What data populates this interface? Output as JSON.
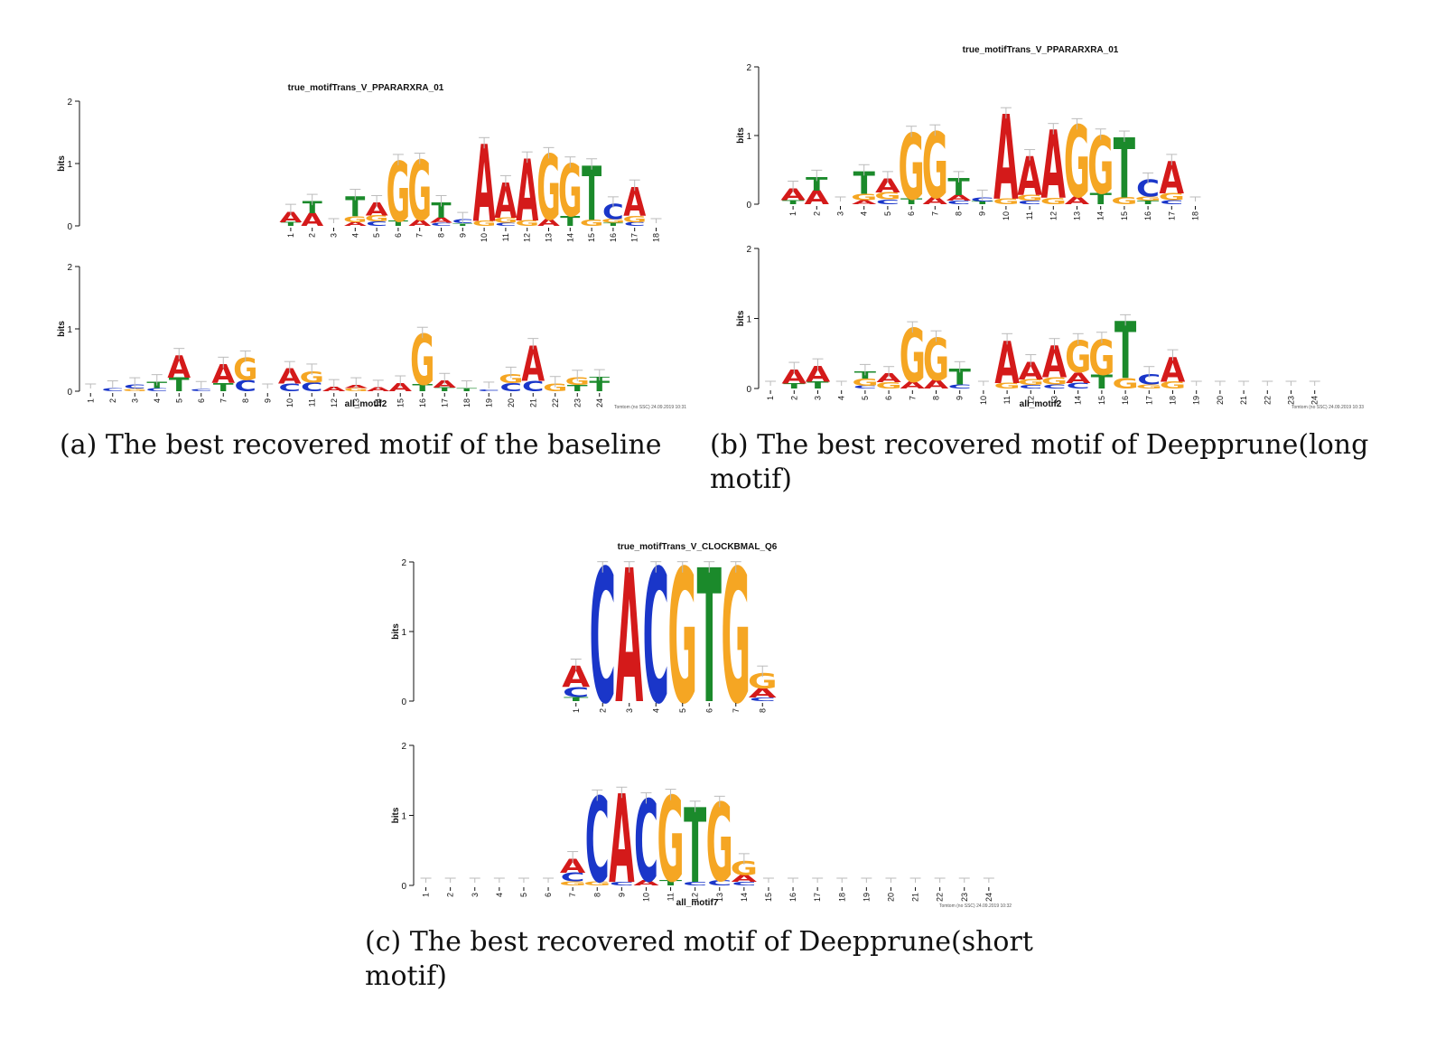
{
  "colors": {
    "A": "#d41a1a",
    "C": "#1a36c9",
    "G": "#f5a623",
    "T": "#1b8a2b",
    "axis": "#111111",
    "error": "#bbbbbb"
  },
  "figures": [
    {
      "id": "a",
      "caption": "(a) The best recovered motif of the baseline",
      "logos": [
        {
          "title": "true_motifTrans_V_PPARARXRA_01",
          "ylabel": "bits",
          "yticks": [
            "0",
            "1",
            "2"
          ],
          "xlabel": "",
          "footer": "",
          "positions": [
            [
              [
                "T",
                0.06
              ],
              [
                "A",
                0.17
              ]
            ],
            [
              [
                "A",
                0.2
              ],
              [
                "T",
                0.19
              ]
            ],
            [],
            [
              [
                "A",
                0.06
              ],
              [
                "G",
                0.09
              ],
              [
                "T",
                0.32
              ]
            ],
            [
              [
                "C",
                0.07
              ],
              [
                "G",
                0.1
              ],
              [
                "A",
                0.2
              ]
            ],
            [
              [
                "T",
                0.08
              ],
              [
                "G",
                0.95
              ]
            ],
            [
              [
                "A",
                0.1
              ],
              [
                "G",
                0.95
              ]
            ],
            [
              [
                "C",
                0.05
              ],
              [
                "A",
                0.08
              ],
              [
                "T",
                0.24
              ]
            ],
            [
              [
                "T",
                0.04
              ],
              [
                "C",
                0.06
              ]
            ],
            [
              [
                "G",
                0.08
              ],
              [
                "A",
                1.22
              ]
            ],
            [
              [
                "C",
                0.05
              ],
              [
                "G",
                0.08
              ],
              [
                "A",
                0.56
              ]
            ],
            [
              [
                "G",
                0.09
              ],
              [
                "A",
                0.98
              ]
            ],
            [
              [
                "A",
                0.11
              ],
              [
                "G",
                1.03
              ]
            ],
            [
              [
                "T",
                0.16
              ],
              [
                "G",
                0.83
              ]
            ],
            [
              [
                "G",
                0.1
              ],
              [
                "T",
                0.86
              ]
            ],
            [
              [
                "T",
                0.05
              ],
              [
                "G",
                0.06
              ],
              [
                "C",
                0.24
              ]
            ],
            [
              [
                "C",
                0.06
              ],
              [
                "G",
                0.1
              ],
              [
                "A",
                0.46
              ]
            ],
            []
          ]
        },
        {
          "title": "",
          "ylabel": "bits",
          "yticks": [
            "0",
            "1",
            "2"
          ],
          "xlabel": "all_motif2",
          "footer": "Tomtom (no SSC) 24.09.2019 10:31",
          "positions": [
            [],
            [
              [
                "C",
                0.05
              ]
            ],
            [
              [
                "G",
                0.04
              ],
              [
                "C",
                0.06
              ]
            ],
            [
              [
                "C",
                0.05
              ],
              [
                "T",
                0.1
              ]
            ],
            [
              [
                "T",
                0.22
              ],
              [
                "A",
                0.35
              ]
            ],
            [
              [
                "C",
                0.04
              ]
            ],
            [
              [
                "T",
                0.13
              ],
              [
                "A",
                0.3
              ]
            ],
            [
              [
                "C",
                0.18
              ],
              [
                "G",
                0.35
              ]
            ],
            [],
            [
              [
                "C",
                0.12
              ],
              [
                "A",
                0.24
              ]
            ],
            [
              [
                "C",
                0.14
              ],
              [
                "G",
                0.18
              ]
            ],
            [
              [
                "A",
                0.07
              ]
            ],
            [
              [
                "G",
                0.05
              ],
              [
                "A",
                0.05
              ]
            ],
            [
              [
                "A",
                0.06
              ]
            ],
            [
              [
                "A",
                0.13
              ]
            ],
            [
              [
                "T",
                0.11
              ],
              [
                "G",
                0.8
              ]
            ],
            [
              [
                "T",
                0.06
              ],
              [
                "A",
                0.11
              ]
            ],
            [
              [
                "T",
                0.05
              ]
            ],
            [
              [
                "C",
                0.03
              ]
            ],
            [
              [
                "C",
                0.13
              ],
              [
                "G",
                0.14
              ]
            ],
            [
              [
                "C",
                0.17
              ],
              [
                "A",
                0.56
              ]
            ],
            [
              [
                "G",
                0.12
              ]
            ],
            [
              [
                "T",
                0.1
              ],
              [
                "G",
                0.12
              ]
            ],
            [
              [
                "T",
                0.17
              ],
              [
                "T",
                0.06
              ]
            ]
          ]
        }
      ]
    },
    {
      "id": "b",
      "caption": "(b) The best recovered motif of Deepprune(long motif)",
      "caption_line1": "(b) The best recovered motif of Deepprune(long",
      "caption_line2": "motif)",
      "logos": [
        {
          "title": "true_motifTrans_V_PPARARXRA_01",
          "ylabel": "bits",
          "yticks": [
            "0",
            "1",
            "2"
          ],
          "xlabel": "",
          "footer": "",
          "positions": [
            [
              [
                "T",
                0.06
              ],
              [
                "A",
                0.17
              ]
            ],
            [
              [
                "A",
                0.2
              ],
              [
                "T",
                0.19
              ]
            ],
            [],
            [
              [
                "A",
                0.06
              ],
              [
                "G",
                0.09
              ],
              [
                "T",
                0.32
              ]
            ],
            [
              [
                "C",
                0.07
              ],
              [
                "G",
                0.1
              ],
              [
                "A",
                0.2
              ]
            ],
            [
              [
                "T",
                0.08
              ],
              [
                "G",
                0.95
              ]
            ],
            [
              [
                "A",
                0.1
              ],
              [
                "G",
                0.95
              ]
            ],
            [
              [
                "C",
                0.05
              ],
              [
                "A",
                0.08
              ],
              [
                "T",
                0.24
              ]
            ],
            [
              [
                "T",
                0.04
              ],
              [
                "C",
                0.06
              ]
            ],
            [
              [
                "G",
                0.08
              ],
              [
                "A",
                1.22
              ]
            ],
            [
              [
                "C",
                0.05
              ],
              [
                "G",
                0.08
              ],
              [
                "A",
                0.56
              ]
            ],
            [
              [
                "G",
                0.09
              ],
              [
                "A",
                0.98
              ]
            ],
            [
              [
                "A",
                0.11
              ],
              [
                "G",
                1.03
              ]
            ],
            [
              [
                "T",
                0.16
              ],
              [
                "G",
                0.83
              ]
            ],
            [
              [
                "G",
                0.1
              ],
              [
                "T",
                0.86
              ]
            ],
            [
              [
                "T",
                0.05
              ],
              [
                "G",
                0.06
              ],
              [
                "C",
                0.24
              ]
            ],
            [
              [
                "C",
                0.06
              ],
              [
                "G",
                0.1
              ],
              [
                "A",
                0.46
              ]
            ],
            []
          ]
        },
        {
          "title": "",
          "ylabel": "bits",
          "yticks": [
            "0",
            "1",
            "2"
          ],
          "xlabel": "all_motif2",
          "footer": "Tomtom (no SSC) 24.09.2019 10:33",
          "positions": [
            [],
            [
              [
                "T",
                0.07
              ],
              [
                "A",
                0.2
              ]
            ],
            [
              [
                "T",
                0.1
              ],
              [
                "A",
                0.22
              ]
            ],
            [],
            [
              [
                "C",
                0.04
              ],
              [
                "G",
                0.1
              ],
              [
                "T",
                0.1
              ]
            ],
            [
              [
                "G",
                0.09
              ],
              [
                "A",
                0.12
              ]
            ],
            [
              [
                "A",
                0.1
              ],
              [
                "G",
                0.75
              ]
            ],
            [
              [
                "A",
                0.12
              ],
              [
                "G",
                0.6
              ]
            ],
            [
              [
                "C",
                0.06
              ],
              [
                "T",
                0.22
              ]
            ],
            [],
            [
              [
                "G",
                0.08
              ],
              [
                "A",
                0.6
              ]
            ],
            [
              [
                "C",
                0.05
              ],
              [
                "G",
                0.08
              ],
              [
                "A",
                0.25
              ]
            ],
            [
              [
                "C",
                0.06
              ],
              [
                "G",
                0.1
              ],
              [
                "A",
                0.45
              ]
            ],
            [
              [
                "C",
                0.08
              ],
              [
                "A",
                0.15
              ],
              [
                "G",
                0.45
              ]
            ],
            [
              [
                "T",
                0.2
              ],
              [
                "G",
                0.5
              ]
            ],
            [
              [
                "G",
                0.15
              ],
              [
                "T",
                0.8
              ]
            ],
            [
              [
                "G",
                0.06
              ],
              [
                "C",
                0.15
              ]
            ],
            [
              [
                "G",
                0.1
              ],
              [
                "A",
                0.35
              ]
            ],
            [],
            [],
            [],
            [],
            [],
            []
          ]
        }
      ]
    },
    {
      "id": "c",
      "caption_line1": "(c) The best recovered motif of Deepprune(short",
      "caption_line2": "motif)",
      "logos": [
        {
          "title": "true_motifTrans_V_CLOCKBMAL_Q6",
          "ylabel": "bits",
          "yticks": [
            "0",
            "1",
            "2"
          ],
          "xlabel": "",
          "footer": "",
          "positions": [
            [
              [
                "T",
                0.06
              ],
              [
                "C",
                0.14
              ],
              [
                "A",
                0.3
              ]
            ],
            [
              [
                "C",
                1.9
              ]
            ],
            [
              [
                "A",
                1.9
              ]
            ],
            [
              [
                "C",
                1.9
              ]
            ],
            [
              [
                "G",
                1.9
              ]
            ],
            [
              [
                "T",
                1.9
              ]
            ],
            [
              [
                "G",
                1.9
              ]
            ],
            [
              [
                "C",
                0.05
              ],
              [
                "A",
                0.13
              ],
              [
                "G",
                0.22
              ]
            ]
          ]
        },
        {
          "title": "",
          "ylabel": "bits",
          "yticks": [
            "0",
            "1",
            "2"
          ],
          "xlabel": "all_motif7",
          "footer": "Tomtom (no SSC) 24.09.2019 10:32",
          "positions": [
            [],
            [],
            [],
            [],
            [],
            [],
            [
              [
                "G",
                0.06
              ],
              [
                "C",
                0.12
              ],
              [
                "A",
                0.2
              ]
            ],
            [
              [
                "G",
                0.06
              ],
              [
                "C",
                1.2
              ]
            ],
            [
              [
                "C",
                0.05
              ],
              [
                "A",
                1.25
              ]
            ],
            [
              [
                "A",
                0.07
              ],
              [
                "C",
                1.15
              ]
            ],
            [
              [
                "T",
                0.07
              ],
              [
                "G",
                1.2
              ]
            ],
            [
              [
                "C",
                0.05
              ],
              [
                "T",
                1.05
              ]
            ],
            [
              [
                "C",
                0.07
              ],
              [
                "G",
                1.1
              ]
            ],
            [
              [
                "C",
                0.05
              ],
              [
                "A",
                0.1
              ],
              [
                "G",
                0.2
              ]
            ],
            [],
            [],
            [],
            [],
            [],
            [],
            [],
            [],
            [],
            []
          ]
        }
      ]
    }
  ]
}
